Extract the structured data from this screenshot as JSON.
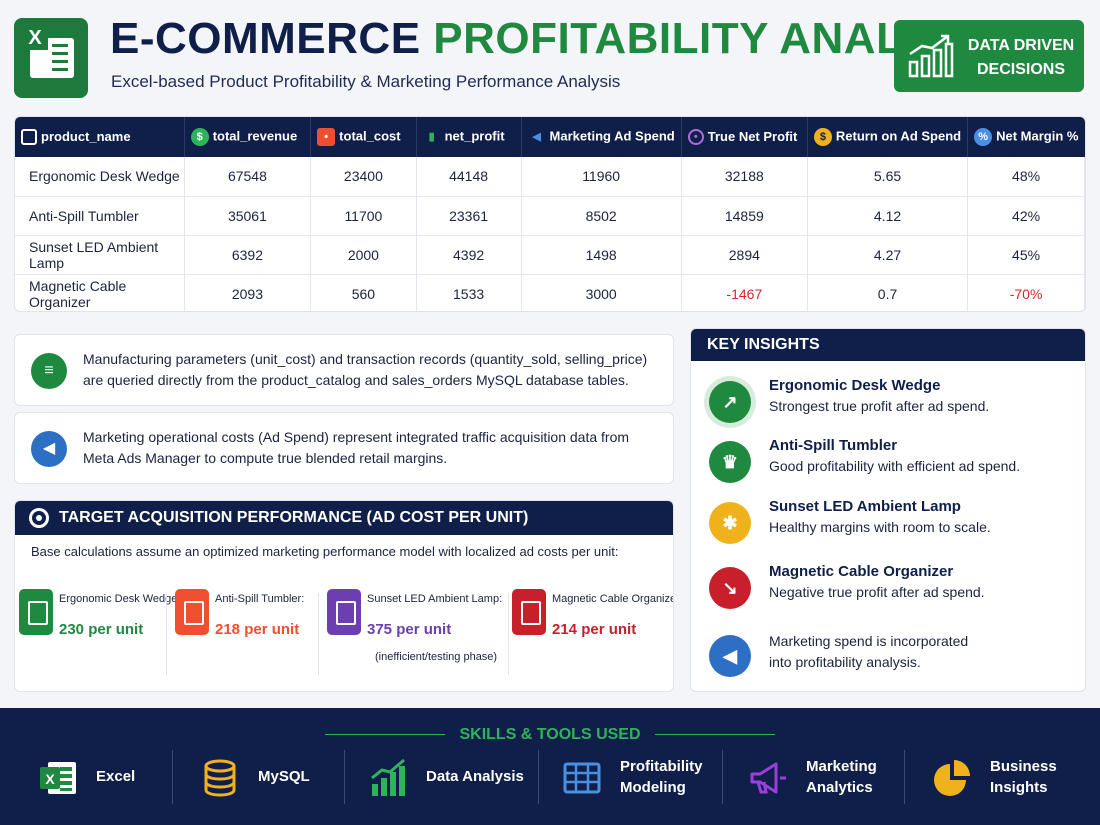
{
  "header": {
    "title_part1": "E-COMMERCE",
    "title_part2": "PROFITABILITY ANALYSIS",
    "subtitle": "Excel-based Product Profitability & Marketing Performance Analysis",
    "badge_line1": "DATA DRIVEN",
    "badge_line2": "DECISIONS",
    "logo_letter": "X",
    "colors": {
      "navy": "#0f1f4a",
      "green": "#1f8a3f",
      "red": "#d7262b"
    }
  },
  "table": {
    "columns": [
      {
        "label": "product_name",
        "icon": "box-icon"
      },
      {
        "label": "total_revenue",
        "icon": "money-bag-icon"
      },
      {
        "label": "total_cost",
        "icon": "price-tag-icon"
      },
      {
        "label": "net_profit",
        "icon": "bar-chart-icon"
      },
      {
        "label": "Marketing Ad Spend",
        "icon": "megaphone-icon"
      },
      {
        "label": "True Net Profit",
        "icon": "target-icon"
      },
      {
        "label": "Return on Ad Spend",
        "icon": "coin-icon"
      },
      {
        "label": "Net Margin %",
        "icon": "percent-icon"
      }
    ],
    "rows": [
      [
        "Ergonomic Desk Wedge",
        "67548",
        "23400",
        "44148",
        "11960",
        "32188",
        "5.65",
        "48%"
      ],
      [
        "Anti-Spill Tumbler",
        "35061",
        "11700",
        "23361",
        "8502",
        "14859",
        "4.12",
        "42%"
      ],
      [
        "Sunset LED Ambient Lamp",
        "6392",
        "2000",
        "4392",
        "1498",
        "2894",
        "4.27",
        "45%"
      ],
      [
        "Magnetic Cable Organizer",
        "2093",
        "560",
        "1533",
        "3000",
        "-1467",
        "0.7",
        "-70%"
      ]
    ]
  },
  "info": {
    "db_text": "Manufacturing parameters (unit_cost) and transaction records (quantity_sold, selling_price) are queried directly from the product_catalog and sales_orders MySQL database tables.",
    "ads_text": "Marketing operational costs (Ad Spend) represent integrated traffic acquisition data from Meta Ads Manager to compute true blended retail margins."
  },
  "acquisition": {
    "title": "TARGET ACQUISITION PERFORMANCE (AD COST PER UNIT)",
    "description": "Base calculations assume an optimized marketing performance model with localized ad costs per unit:",
    "units": [
      {
        "name": "Ergonomic Desk Wedge:",
        "value": "230 per unit",
        "note": "",
        "color": "#1f8a3f"
      },
      {
        "name": "Anti-Spill Tumbler:",
        "value": "218 per unit",
        "note": "",
        "color": "#ef4f2f"
      },
      {
        "name": "Sunset LED Ambient Lamp:",
        "value": "375 per unit",
        "note": "(inefficient/testing phase)",
        "color": "#6b3fb0"
      },
      {
        "name": "Magnetic Cable Organizer:",
        "value": "214 per unit",
        "note": "",
        "color": "#c8202a"
      }
    ]
  },
  "insights": {
    "title": "KEY INSIGHTS",
    "items": [
      {
        "title": "Ergonomic Desk Wedge",
        "desc": "Strongest true profit after ad spend.",
        "icon": "growth-chart-icon",
        "color": "#1f8a3f"
      },
      {
        "title": "Anti-Spill Tumbler",
        "desc": "Good profitability with efficient ad spend.",
        "icon": "trophy-icon",
        "color": "#1f8a3f"
      },
      {
        "title": "Sunset LED Ambient Lamp",
        "desc": "Healthy margins with room to scale.",
        "icon": "lightbulb-icon",
        "color": "#f0b21a"
      },
      {
        "title": "Magnetic Cable Organizer",
        "desc": "Negative true profit after ad spend.",
        "icon": "decline-chart-icon",
        "color": "#c8202a"
      }
    ],
    "note_line1": "Marketing spend is incorporated",
    "note_line2": "into profitability analysis."
  },
  "footer": {
    "title": "SKILLS & TOOLS USED",
    "tools": [
      {
        "line1": "Excel",
        "line2": "",
        "icon": "excel-icon"
      },
      {
        "line1": "MySQL",
        "line2": "",
        "icon": "database-icon"
      },
      {
        "line1": "Data Analysis",
        "line2": "",
        "icon": "bar-chart-icon"
      },
      {
        "line1": "Profitability",
        "line2": "Modeling",
        "icon": "spreadsheet-icon"
      },
      {
        "line1": "Marketing",
        "line2": "Analytics",
        "icon": "megaphone-icon"
      },
      {
        "line1": "Business",
        "line2": "Insights",
        "icon": "pie-chart-icon"
      }
    ]
  }
}
